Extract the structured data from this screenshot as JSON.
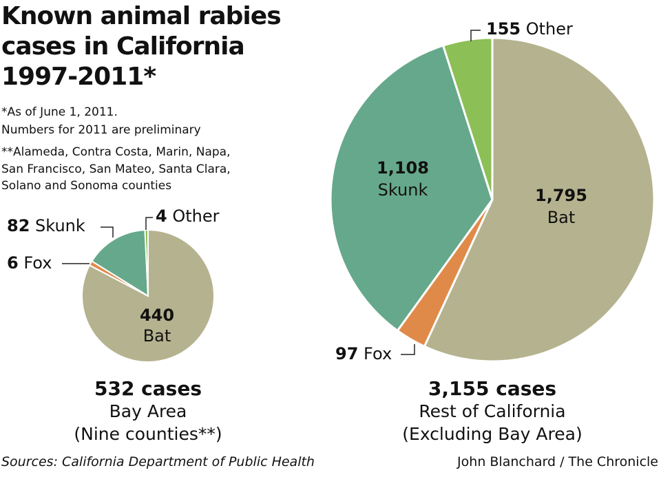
{
  "title": "Known animal rabies cases in California 1997-2011*",
  "notes": [
    "*As of June 1, 2011.",
    "Numbers for 2011 are preliminary",
    "**Alameda, Contra Costa, Marin, Napa,",
    "San Francisco, San Mateo, Santa Clara,",
    "Solano and Sonoma counties"
  ],
  "colors": {
    "Bat": "#b5b38f",
    "Fox": "#e08a4a",
    "Skunk": "#66a88b",
    "Other": "#8cbf55"
  },
  "chart_data": [
    {
      "type": "pie",
      "total_label": "532 cases",
      "subtitle": "Bay Area",
      "subtitle2": "(Nine counties**)",
      "slices": [
        {
          "name": "Bat",
          "value": 440,
          "value_label": "440"
        },
        {
          "name": "Fox",
          "value": 6,
          "value_label": "6"
        },
        {
          "name": "Skunk",
          "value": 82,
          "value_label": "82"
        },
        {
          "name": "Other",
          "value": 4,
          "value_label": "4"
        }
      ]
    },
    {
      "type": "pie",
      "total_label": "3,155 cases",
      "subtitle": "Rest of California",
      "subtitle2": "(Excluding Bay Area)",
      "slices": [
        {
          "name": "Bat",
          "value": 1795,
          "value_label": "1,795"
        },
        {
          "name": "Fox",
          "value": 97,
          "value_label": "97"
        },
        {
          "name": "Skunk",
          "value": 1108,
          "value_label": "1,108"
        },
        {
          "name": "Other",
          "value": 155,
          "value_label": "155"
        }
      ]
    }
  ],
  "footer": {
    "source": "Sources: California Department of Public Health",
    "credit": "John Blanchard / The Chronicle"
  }
}
